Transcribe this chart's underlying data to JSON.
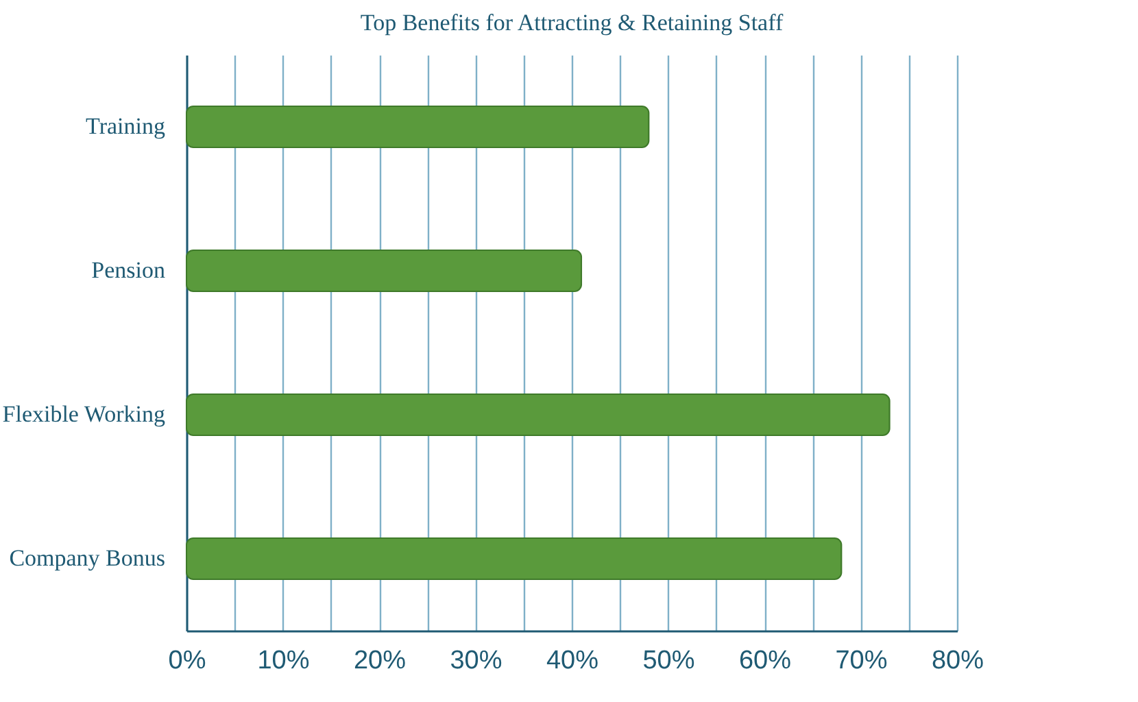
{
  "chart_data": {
    "type": "bar",
    "orientation": "horizontal",
    "title": "Top Benefits for Attracting & Retaining Staff",
    "categories": [
      "Training",
      "Pension",
      "Flexible Working",
      "Company Bonus"
    ],
    "values": [
      48,
      41,
      73,
      68
    ],
    "color": "#5a9a3c",
    "xlim": [
      0,
      80
    ],
    "xticks": [
      {
        "value": 0,
        "label": "0%"
      },
      {
        "value": 5,
        "label": null
      },
      {
        "value": 10,
        "label": "10%"
      },
      {
        "value": 15,
        "label": null
      },
      {
        "value": 20,
        "label": "20%"
      },
      {
        "value": 25,
        "label": null
      },
      {
        "value": 30,
        "label": "30%"
      },
      {
        "value": 35,
        "label": null
      },
      {
        "value": 40,
        "label": "40%"
      },
      {
        "value": 45,
        "label": null
      },
      {
        "value": 50,
        "label": "50%"
      },
      {
        "value": 55,
        "label": null
      },
      {
        "value": 60,
        "label": "60%"
      },
      {
        "value": 65,
        "label": null
      },
      {
        "value": 70,
        "label": "70%"
      },
      {
        "value": 75,
        "label": null
      },
      {
        "value": 80,
        "label": "80%"
      }
    ],
    "grid": "x"
  }
}
